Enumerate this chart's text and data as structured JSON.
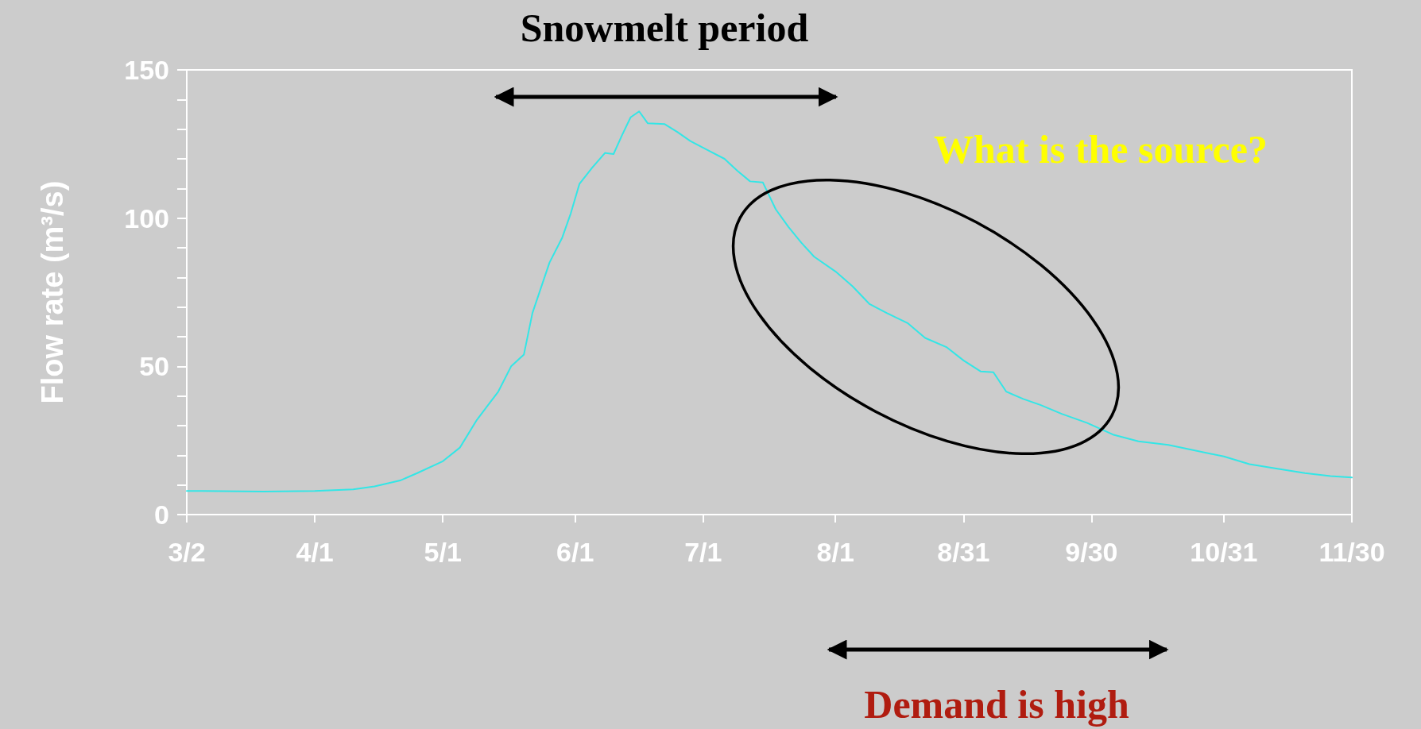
{
  "chart_data": {
    "type": "line",
    "ylabel": "Flow rate (m³/s)",
    "annotations": [
      "Snowmelt period",
      "What is the source?",
      "Demand is high"
    ],
    "x": [
      "--03-02",
      "--03-20",
      "--04-01",
      "--04-10",
      "--04-15",
      "--04-21",
      "--04-25",
      "--05-01",
      "--05-05",
      "--05-09",
      "--05-14",
      "--05-17",
      "--05-20",
      "--05-22",
      "--05-26",
      "--05-29",
      "--05-31",
      "--06-02",
      "--06-05",
      "--06-08",
      "--06-10",
      "--06-12",
      "--06-14",
      "--06-16",
      "--06-18",
      "--06-22",
      "--06-25",
      "--06-28",
      "--07-02",
      "--07-06",
      "--07-09",
      "--07-12",
      "--07-15",
      "--07-18",
      "--07-21",
      "--07-24",
      "--07-27",
      "--08-01",
      "--08-05",
      "--08-09",
      "--08-13",
      "--08-18",
      "--08-22",
      "--08-27",
      "--08-31",
      "--09-04",
      "--09-07",
      "--09-10",
      "--09-14",
      "--09-18",
      "--09-23",
      "--09-29",
      "--10-05",
      "--10-11",
      "--10-18",
      "--10-24",
      "--10-31",
      "--11-06",
      "--11-12",
      "--11-19",
      "--11-25",
      "--11-30"
    ],
    "series": [
      {
        "color": "#33e6e6",
        "values": [
          8,
          7.8,
          8,
          8.5,
          9.5,
          11.5,
          14,
          18,
          22.6,
          32,
          41.5,
          50,
          54,
          68,
          85,
          93.5,
          101.7,
          111.5,
          117,
          122,
          121.6,
          128,
          134,
          136,
          132,
          131.7,
          129,
          126,
          123,
          120,
          116,
          112.4,
          112,
          103,
          97,
          91.7,
          87,
          82,
          77,
          71,
          68,
          64.5,
          59.6,
          56.5,
          52,
          48.3,
          48,
          41.5,
          39,
          37,
          34,
          30.9,
          27,
          24.7,
          23.5,
          21.7,
          19.6,
          17,
          15.6,
          14,
          13,
          12.5
        ]
      }
    ],
    "xlim": [
      "--03-02",
      "--11-30"
    ],
    "xticks": [
      {
        "value": "--03-02",
        "label": "3/2"
      },
      {
        "value": "--04-01",
        "label": "4/1"
      },
      {
        "value": "--05-01",
        "label": "5/1"
      },
      {
        "value": "--06-01",
        "label": "6/1"
      },
      {
        "value": "--07-01",
        "label": "7/1"
      },
      {
        "value": "--08-01",
        "label": "8/1"
      },
      {
        "value": "--08-31",
        "label": "8/31"
      },
      {
        "value": "--09-30",
        "label": "9/30"
      },
      {
        "value": "--10-31",
        "label": "10/31"
      },
      {
        "value": "--11-30",
        "label": "11/30"
      }
    ],
    "ylim": [
      0,
      150
    ],
    "yticks": [
      0,
      50,
      100,
      150
    ],
    "marker": "none",
    "line_style": "solid"
  }
}
